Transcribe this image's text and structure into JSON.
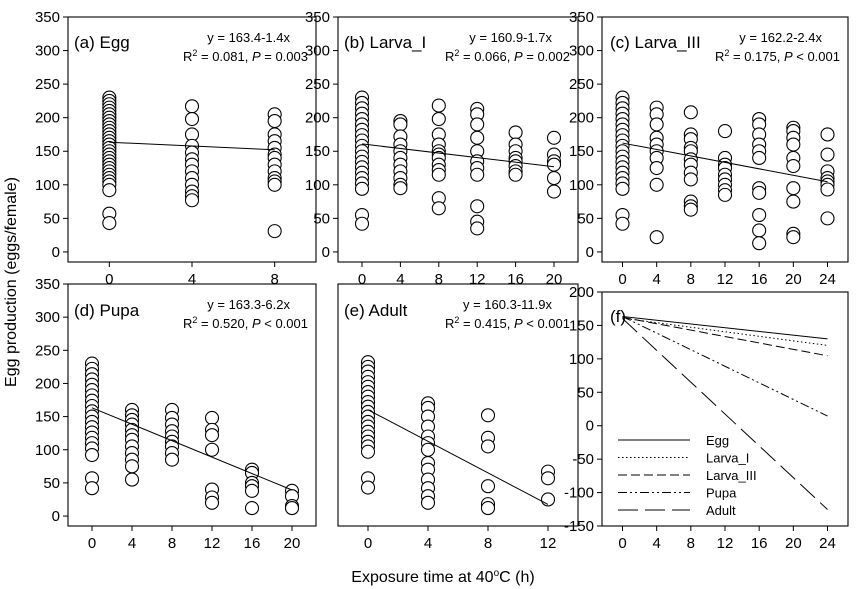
{
  "figure": {
    "xlabel_prefix": "Exposure time at 40",
    "xlabel_sup": "o",
    "xlabel_suffix": "C (h)",
    "ylabel": "Egg production (eggs/female)"
  },
  "chart_data": [
    {
      "type": "scatter",
      "title": "(a) Egg",
      "equation": "y = 163.4-1.4x",
      "r2_text": ", P = 0.003",
      "r2_value": "0.081",
      "xticks": [
        0,
        4,
        8
      ],
      "xlim": [
        -2,
        10
      ],
      "ylim": [
        -15,
        350
      ],
      "yticks": [
        0,
        50,
        100,
        150,
        200,
        250,
        300,
        350
      ],
      "fit": {
        "intercept": 163.4,
        "slope": -1.4,
        "x_range": [
          0,
          8
        ]
      },
      "points": [
        {
          "x": 0,
          "y": [
            230,
            225,
            220,
            215,
            210,
            205,
            200,
            195,
            190,
            185,
            180,
            175,
            170,
            165,
            160,
            155,
            150,
            145,
            140,
            135,
            130,
            125,
            120,
            115,
            110,
            105,
            100,
            92,
            57,
            43
          ]
        },
        {
          "x": 4,
          "y": [
            217,
            198,
            175,
            158,
            148,
            138,
            130,
            120,
            110,
            100,
            90,
            83,
            77
          ]
        },
        {
          "x": 8,
          "y": [
            205,
            195,
            175,
            165,
            155,
            145,
            140,
            130,
            120,
            110,
            105,
            100,
            31
          ]
        }
      ]
    },
    {
      "type": "scatter",
      "title": "(b) Larva_I",
      "equation": "y = 160.9-1.7x",
      "r2_text": ", P = 0.002",
      "r2_value": "0.066",
      "xticks": [
        0,
        4,
        8,
        12,
        16,
        20
      ],
      "xlim": [
        -2.5,
        22.5
      ],
      "ylim": [
        -15,
        350
      ],
      "yticks": [
        0,
        50,
        100,
        150,
        200,
        250,
        300,
        350
      ],
      "fit": {
        "intercept": 160.9,
        "slope": -1.7,
        "x_range": [
          0,
          20
        ]
      },
      "points": [
        {
          "x": 0,
          "y": [
            230,
            222,
            214,
            206,
            198,
            190,
            182,
            174,
            166,
            158,
            150,
            142,
            134,
            126,
            118,
            110,
            102,
            94,
            55,
            42
          ]
        },
        {
          "x": 4,
          "y": [
            195,
            190,
            172,
            160,
            150,
            140,
            130,
            120,
            110,
            100,
            95
          ]
        },
        {
          "x": 8,
          "y": [
            218,
            198,
            175,
            160,
            150,
            145,
            140,
            130,
            122,
            115,
            80,
            65
          ]
        },
        {
          "x": 12,
          "y": [
            213,
            205,
            190,
            170,
            150,
            135,
            125,
            115,
            68,
            45,
            35
          ]
        },
        {
          "x": 16,
          "y": [
            178,
            160,
            150,
            140,
            135,
            128,
            120,
            115
          ]
        },
        {
          "x": 20,
          "y": [
            170,
            145,
            135,
            130,
            110,
            90
          ]
        }
      ]
    },
    {
      "type": "scatter",
      "title": "(c) Larva_III",
      "equation": "y = 162.2-2.4x",
      "r2_text": ", P < 0.001",
      "r2_value": "0.175",
      "xticks": [
        0,
        4,
        8,
        12,
        16,
        20,
        24
      ],
      "xlim": [
        -2.4,
        26.4
      ],
      "ylim": [
        -15,
        350
      ],
      "yticks": [
        0,
        50,
        100,
        150,
        200,
        250,
        300,
        350
      ],
      "fit": {
        "intercept": 162.2,
        "slope": -2.4,
        "x_range": [
          0,
          24
        ]
      },
      "points": [
        {
          "x": 0,
          "y": [
            230,
            222,
            214,
            206,
            198,
            190,
            182,
            174,
            166,
            158,
            150,
            142,
            134,
            126,
            118,
            110,
            102,
            94,
            55,
            42
          ]
        },
        {
          "x": 4,
          "y": [
            215,
            205,
            190,
            170,
            160,
            150,
            140,
            125,
            100,
            22
          ]
        },
        {
          "x": 8,
          "y": [
            208,
            175,
            168,
            155,
            150,
            138,
            130,
            118,
            108,
            75,
            68,
            63
          ]
        },
        {
          "x": 12,
          "y": [
            180,
            140,
            130,
            125,
            115,
            108,
            100,
            92,
            85
          ]
        },
        {
          "x": 16,
          "y": [
            198,
            190,
            175,
            160,
            150,
            140,
            95,
            88,
            55,
            32,
            13
          ]
        },
        {
          "x": 20,
          "y": [
            185,
            180,
            170,
            160,
            140,
            128,
            95,
            75,
            27,
            22
          ]
        },
        {
          "x": 24,
          "y": [
            175,
            145,
            120,
            110,
            105,
            100,
            93,
            50
          ]
        }
      ]
    },
    {
      "type": "scatter",
      "title": "(d) Pupa",
      "equation": "y = 163.3-6.2x",
      "r2_text": ", P < 0.001",
      "r2_value": "0.520",
      "xticks": [
        0,
        4,
        8,
        12,
        16,
        20
      ],
      "xlim": [
        -2.4,
        22.4
      ],
      "ylim": [
        -15,
        350
      ],
      "yticks": [
        0,
        50,
        100,
        150,
        200,
        250,
        300,
        350
      ],
      "fit": {
        "intercept": 163.3,
        "slope": -6.2,
        "x_range": [
          0,
          20
        ]
      },
      "points": [
        {
          "x": 0,
          "y": [
            230,
            222,
            214,
            206,
            198,
            190,
            182,
            174,
            166,
            158,
            150,
            142,
            134,
            126,
            118,
            110,
            102,
            92,
            57,
            42
          ]
        },
        {
          "x": 4,
          "y": [
            160,
            152,
            145,
            138,
            130,
            122,
            115,
            105,
            95,
            85,
            75,
            55
          ]
        },
        {
          "x": 8,
          "y": [
            160,
            148,
            138,
            128,
            120,
            112,
            105,
            95,
            85
          ]
        },
        {
          "x": 12,
          "y": [
            148,
            130,
            122,
            100,
            40,
            28,
            20
          ]
        },
        {
          "x": 16,
          "y": [
            70,
            65,
            50,
            45,
            38,
            12
          ]
        },
        {
          "x": 20,
          "y": [
            38,
            30,
            15,
            12
          ]
        }
      ]
    },
    {
      "type": "scatter",
      "title": "(e) Adult",
      "equation": "y = 160.3-11.9x",
      "r2_text": ", P < 0.001",
      "r2_value": "0.415",
      "xticks": [
        0,
        4,
        8,
        12
      ],
      "xlim": [
        -2,
        14
      ],
      "ylim": [
        -15,
        350
      ],
      "yticks": [],
      "fit": {
        "intercept": 160.3,
        "slope": -11.9,
        "x_range": [
          0,
          12
        ]
      },
      "points": [
        {
          "x": 0,
          "y": [
            232,
            225,
            218,
            210,
            202,
            195,
            187,
            180,
            172,
            165,
            157,
            150,
            142,
            135,
            127,
            120,
            112,
            105,
            97,
            57,
            43
          ]
        },
        {
          "x": 4,
          "y": [
            170,
            163,
            150,
            135,
            120,
            110,
            100,
            80,
            70,
            55,
            42,
            30,
            20
          ]
        },
        {
          "x": 8,
          "y": [
            152,
            118,
            105,
            45,
            18,
            12
          ]
        },
        {
          "x": 12,
          "y": [
            67,
            57,
            25
          ]
        }
      ]
    },
    {
      "type": "line",
      "title": "(f)",
      "xticks": [
        0,
        4,
        8,
        12,
        16,
        20,
        24
      ],
      "xlim": [
        -2.4,
        26.4
      ],
      "ylim": [
        -150,
        200
      ],
      "yticks": [
        -150,
        -100,
        -50,
        0,
        50,
        100,
        150,
        200
      ],
      "series": [
        {
          "name": "Egg",
          "intercept": 163.4,
          "slope": -1.4,
          "x_range": [
            0,
            24
          ],
          "dash": ""
        },
        {
          "name": "Larva_I",
          "intercept": 160.9,
          "slope": -1.7,
          "x_range": [
            0,
            24
          ],
          "dash": "1.5,2.5"
        },
        {
          "name": "Larva_III",
          "intercept": 162.2,
          "slope": -2.4,
          "x_range": [
            0,
            24
          ],
          "dash": "9,4"
        },
        {
          "name": "Pupa",
          "intercept": 163.3,
          "slope": -6.2,
          "x_range": [
            0,
            24
          ],
          "dash": "9,3,2,3,2,3"
        },
        {
          "name": "Adult",
          "intercept": 160.3,
          "slope": -11.9,
          "x_range": [
            0,
            24
          ],
          "dash": "20,7"
        }
      ]
    }
  ]
}
